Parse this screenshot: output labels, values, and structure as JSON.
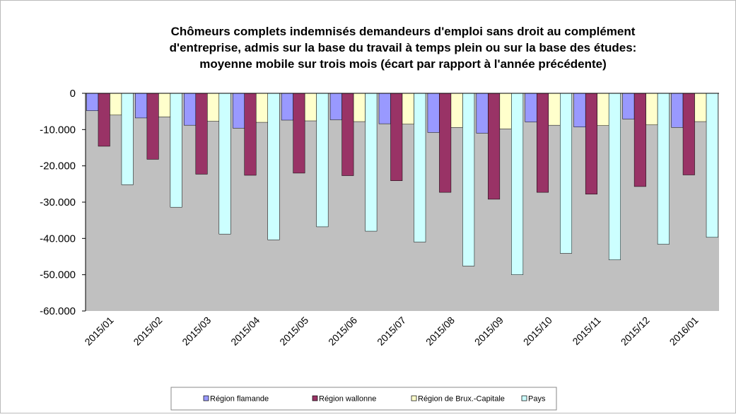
{
  "chart_data": {
    "type": "bar",
    "title": [
      "Chômeurs complets indemnisés demandeurs d'emploi sans droit au complément",
      "d'entreprise, admis sur la base du travail à temps plein ou sur la base des études:",
      "moyenne mobile sur trois mois (écart par rapport à l'année précédente)"
    ],
    "categories": [
      "2015/01",
      "2015/02",
      "2015/03",
      "2015/04",
      "2015/05",
      "2015/06",
      "2015/07",
      "2015/08",
      "2015/09",
      "2015/10",
      "2015/11",
      "2015/12",
      "2016/01"
    ],
    "series": [
      {
        "name": "Région flamande",
        "color": "#9999ff",
        "values": [
          -4800,
          -6800,
          -8800,
          -9600,
          -7400,
          -7300,
          -8400,
          -10800,
          -11000,
          -7900,
          -9300,
          -7100,
          -9400
        ]
      },
      {
        "name": "Région wallonne",
        "color": "#993366",
        "values": [
          -14600,
          -18200,
          -22300,
          -22600,
          -22000,
          -22700,
          -24100,
          -27300,
          -29200,
          -27300,
          -27800,
          -25700,
          -22500
        ]
      },
      {
        "name": "Région de Brux.-Capitale",
        "color": "#ffffcc",
        "values": [
          -6000,
          -6500,
          -7700,
          -8000,
          -7600,
          -7800,
          -8500,
          -9400,
          -9800,
          -8800,
          -8900,
          -8700,
          -7800
        ]
      },
      {
        "name": "Pays",
        "color": "#ccffff",
        "values": [
          -25200,
          -31400,
          -38800,
          -40400,
          -36800,
          -38000,
          -41000,
          -47600,
          -50000,
          -44100,
          -45900,
          -41600,
          -39700
        ]
      }
    ],
    "ylim": [
      -60000,
      0
    ],
    "yticks": [
      0,
      {
        "value": -10000,
        "label": "-10.000"
      },
      {
        "value": -20000,
        "label": "-20.000"
      },
      {
        "value": -30000,
        "label": "-30.000"
      },
      {
        "value": -40000,
        "label": "-40.000"
      },
      {
        "value": -50000,
        "label": "-50.000"
      },
      {
        "value": -60000,
        "label": "-60.000"
      }
    ],
    "plot_background": "#c0c0c0"
  }
}
